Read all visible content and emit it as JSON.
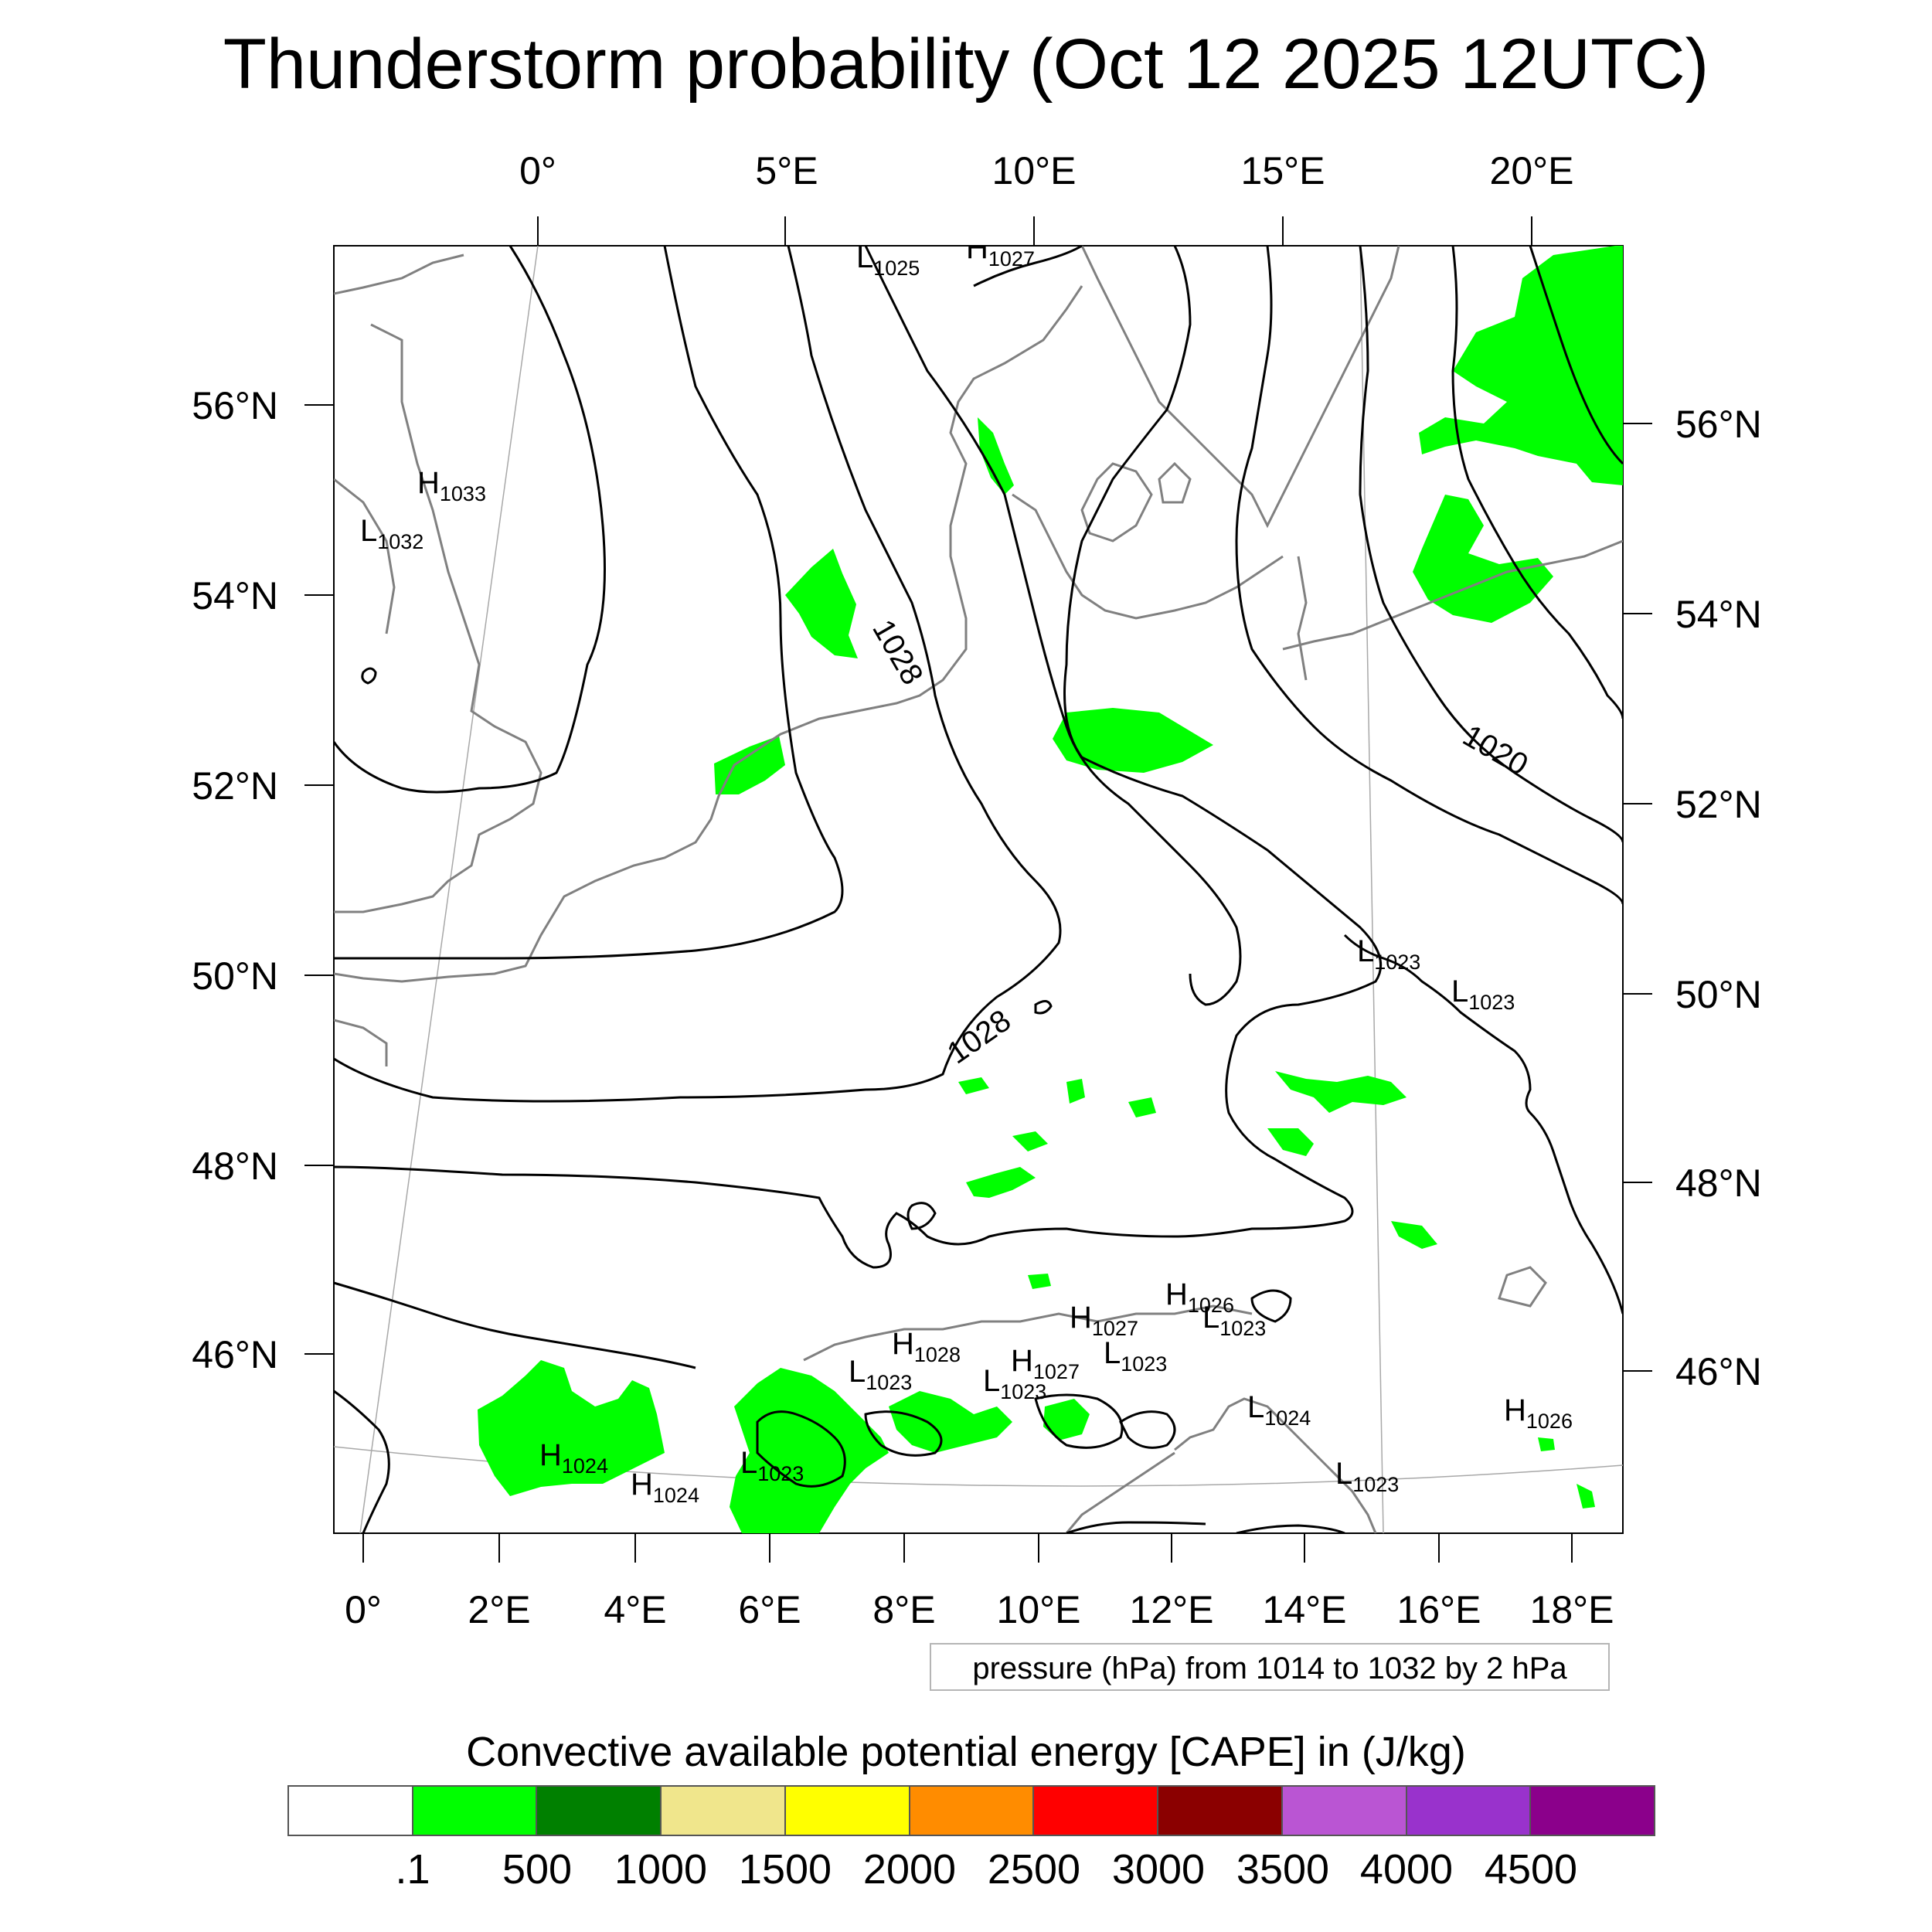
{
  "title": "Thunderstorm probability (Oct 12 2025 12UTC)",
  "map": {
    "top_lon_labels": [
      "0°",
      "5°E",
      "10°E",
      "15°E",
      "20°E"
    ],
    "bottom_lon_labels": [
      "0°",
      "2°E",
      "4°E",
      "6°E",
      "8°E",
      "10°E",
      "12°E",
      "14°E",
      "16°E",
      "18°E"
    ],
    "left_lat_labels": [
      "56°N",
      "54°N",
      "52°N",
      "50°N",
      "48°N",
      "46°N"
    ],
    "right_lat_labels": [
      "56°N",
      "54°N",
      "52°N",
      "50°N",
      "48°N",
      "46°N"
    ],
    "contour_labels": [
      "1028",
      "1028",
      "1020"
    ],
    "pressure_centers": [
      {
        "letter": "H",
        "value": "1033"
      },
      {
        "letter": "L",
        "value": "1032"
      },
      {
        "letter": "L",
        "value": "1025"
      },
      {
        "letter": "H",
        "value": "1027"
      },
      {
        "letter": "L",
        "value": "1023"
      },
      {
        "letter": "L",
        "value": "1023"
      },
      {
        "letter": "H",
        "value": "1026"
      },
      {
        "letter": "L",
        "value": "1023"
      },
      {
        "letter": "H",
        "value": "1027"
      },
      {
        "letter": "H",
        "value": "1028"
      },
      {
        "letter": "L",
        "value": "1023"
      },
      {
        "letter": "H",
        "value": "1027"
      },
      {
        "letter": "L",
        "value": "1023"
      },
      {
        "letter": "L",
        "value": "1023"
      },
      {
        "letter": "L",
        "value": "1024"
      },
      {
        "letter": "H",
        "value": "1026"
      },
      {
        "letter": "H",
        "value": "1024"
      },
      {
        "letter": "H",
        "value": "1024"
      },
      {
        "letter": "L",
        "value": "1023"
      },
      {
        "letter": "L",
        "value": "1023"
      }
    ],
    "colors": {
      "land_outline": "#808080",
      "isobar": "#000000",
      "cape_fill": "#00ff00",
      "grid": "#a0a0a0"
    }
  },
  "info_box": "pressure (hPa) from 1014 to 1032 by 2 hPa",
  "legend": {
    "title": "Convective available potential energy [CAPE] in (J/kg)",
    "colors": [
      "#ffffff",
      "#00ff00",
      "#008000",
      "#f0e68c",
      "#ffff00",
      "#ff8c00",
      "#ff0000",
      "#8b0000",
      "#ba55d3",
      "#9932cc",
      "#8b008b"
    ],
    "labels": [
      ".1",
      "500",
      "1000",
      "1500",
      "2000",
      "2500",
      "3000",
      "3500",
      "4000",
      "4500"
    ]
  }
}
